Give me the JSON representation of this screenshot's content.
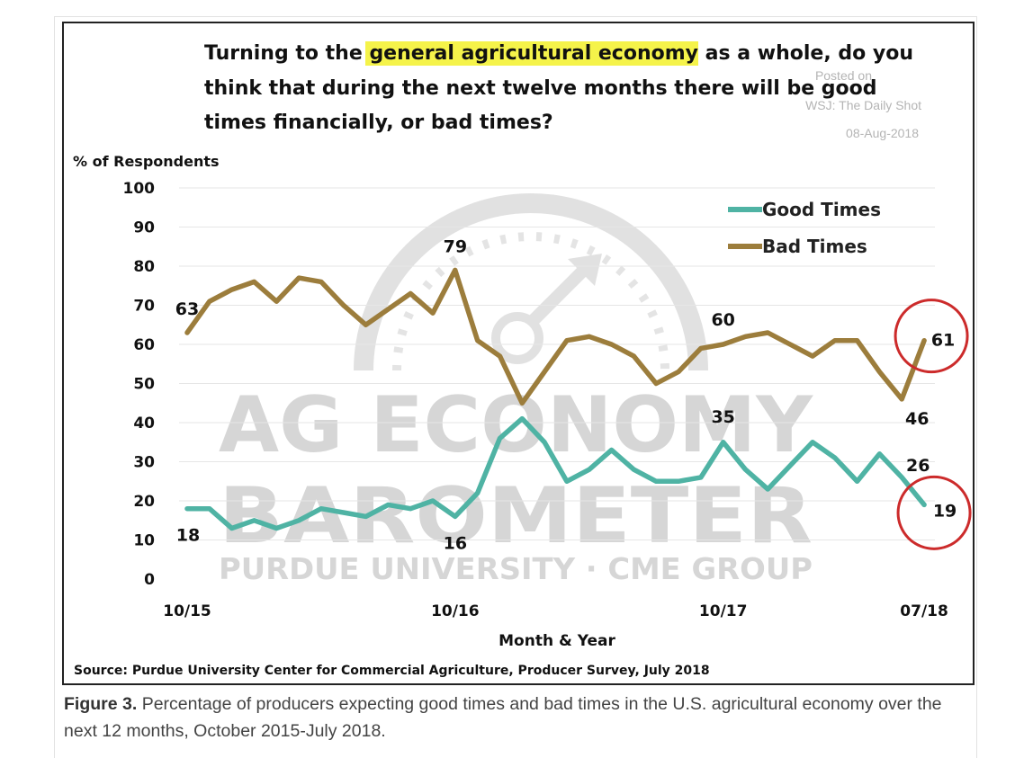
{
  "question": {
    "before": "Turning to the ",
    "highlight": "general agricultural economy",
    "line1_after": " as a whole, do you",
    "line2": "think that during the next twelve months there will be good",
    "line3": "times financially, or bad times?"
  },
  "watermark": {
    "posted_on": "Posted on",
    "outlet": "WSJ: The Daily Shot",
    "date": "08-Aug-2018",
    "logo_line1": "AG ECONOMY",
    "logo_line2": "BAROMETER",
    "logo_line3": "PURDUE UNIVERSITY · CME GROUP"
  },
  "source": "Source: Purdue University Center for Commercial Agriculture, Producer Survey, July 2018",
  "caption": {
    "label": "Figure 3.",
    "text": " Percentage of producers expecting good times and bad times in the U.S. agricultural economy over the next 12 months, October 2015-July 2018."
  },
  "colors": {
    "good_times": "#4fb3a4",
    "bad_times": "#9c7d3c",
    "highlight": "#f5f34a",
    "circle": "#cc2b2b"
  },
  "chart_data": {
    "type": "line",
    "title": "Turning to the general agricultural economy as a whole, do you think that during the next twelve months there will be good times financially, or bad times?",
    "ylabel": "% of Respondents",
    "xlabel": "Month & Year",
    "ylim": [
      0,
      100
    ],
    "yticks": [
      0,
      10,
      20,
      30,
      40,
      50,
      60,
      70,
      80,
      90,
      100
    ],
    "xtick_labels": [
      "10/15",
      "10/16",
      "10/17",
      "07/18"
    ],
    "xtick_index": [
      0,
      12,
      24,
      33
    ],
    "grid": true,
    "legend_position": "top-right",
    "series": [
      {
        "name": "Good Times",
        "values": [
          18,
          18,
          13,
          15,
          13,
          15,
          18,
          17,
          16,
          19,
          18,
          20,
          16,
          22,
          36,
          41,
          35,
          25,
          28,
          33,
          28,
          25,
          25,
          26,
          35,
          28,
          23,
          29,
          35,
          31,
          25,
          32,
          26,
          19
        ]
      },
      {
        "name": "Bad Times",
        "values": [
          63,
          71,
          74,
          76,
          71,
          77,
          76,
          70,
          65,
          69,
          73,
          68,
          79,
          61,
          57,
          45,
          53,
          61,
          62,
          60,
          57,
          50,
          53,
          59,
          60,
          62,
          63,
          60,
          57,
          61,
          61,
          53,
          46,
          61
        ]
      }
    ],
    "annotations": [
      {
        "series": "Bad Times",
        "index": 0,
        "text": "63"
      },
      {
        "series": "Bad Times",
        "index": 12,
        "text": "79"
      },
      {
        "series": "Bad Times",
        "index": 24,
        "text": "60"
      },
      {
        "series": "Bad Times",
        "index": 32,
        "text": "46"
      },
      {
        "series": "Bad Times",
        "index": 33,
        "text": "61"
      },
      {
        "series": "Good Times",
        "index": 0,
        "text": "18"
      },
      {
        "series": "Good Times",
        "index": 12,
        "text": "16"
      },
      {
        "series": "Good Times",
        "index": 24,
        "text": "35"
      },
      {
        "series": "Good Times",
        "index": 32,
        "text": "26"
      },
      {
        "series": "Good Times",
        "index": 33,
        "text": "19"
      }
    ],
    "circled_points": [
      {
        "series": "Bad Times",
        "index": 33
      },
      {
        "series": "Good Times",
        "index": 33
      }
    ]
  }
}
